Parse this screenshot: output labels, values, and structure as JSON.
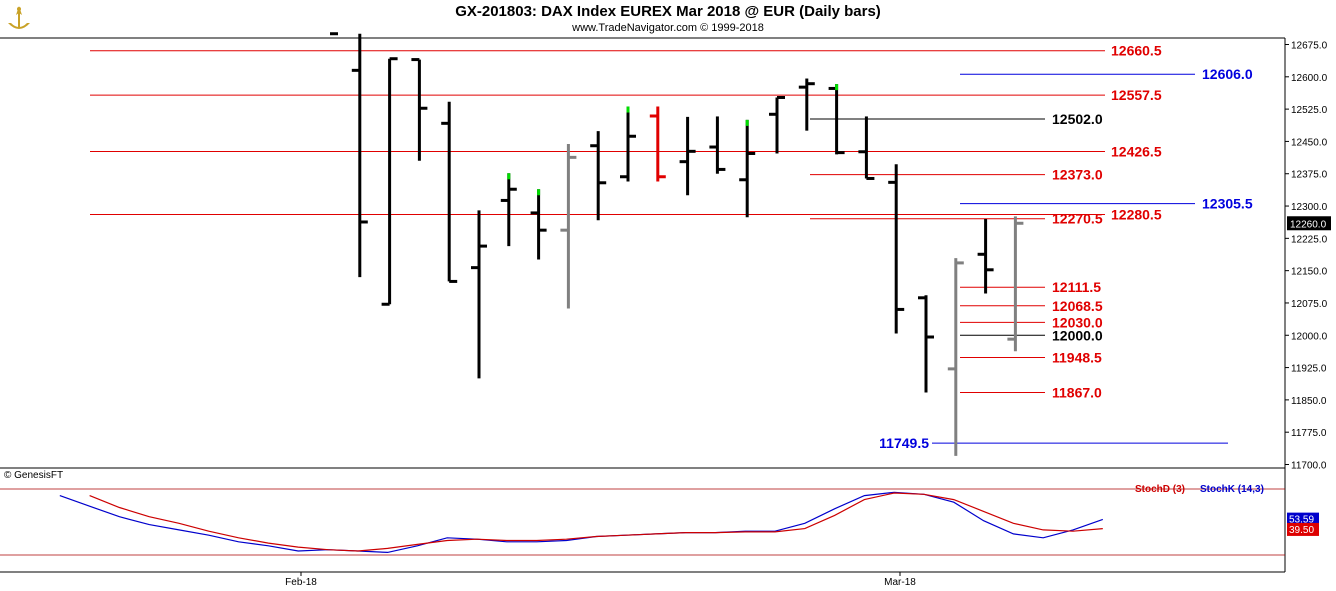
{
  "header": {
    "title": "GX-201803:  DAX Index EUREX Mar 2018 @ EUR  (Daily bars)",
    "subtitle": "www.TradeNavigator.com © 1999-2018"
  },
  "copyright": "© GenesisFT",
  "chart_data": [
    {
      "type": "ohlc",
      "title": "GX-201803:  DAX Index EUREX Mar 2018 @ EUR  (Daily bars)",
      "ylim": [
        11650,
        12700
      ],
      "y_ticks": [
        "12675.0",
        "12600.0",
        "12525.0",
        "12450.0",
        "12375.0",
        "12300.0",
        "12225.0",
        "12150.0",
        "12075.0",
        "12000.0",
        "11925.0",
        "11850.0",
        "11775.0",
        "11700.0"
      ],
      "x_ticks": [
        "Feb-18",
        "Mar-18"
      ],
      "last_price": "12260.0",
      "colors": {
        "black": "#000000",
        "red": "#e00000",
        "green": "#00dd00",
        "gray": "#808080"
      },
      "bars": [
        {
          "o": null,
          "h": 12700,
          "l": 12700,
          "c": 12700,
          "color": "black"
        },
        {
          "o": 12615,
          "h": 12700,
          "l": 12135,
          "c": 12263,
          "color": "black"
        },
        {
          "o": 12072,
          "h": 12642,
          "l": 12072,
          "c": 12642,
          "color": "black"
        },
        {
          "o": 12640,
          "h": 12640,
          "l": 12405,
          "c": 12527,
          "color": "black"
        },
        {
          "o": 12492,
          "h": 12542,
          "l": 12125,
          "c": 12125,
          "color": "black"
        },
        {
          "o": 12157,
          "h": 12290,
          "l": 11900,
          "c": 12207,
          "color": "black"
        },
        {
          "o": 12313,
          "h": 12376,
          "l": 12207,
          "c": 12339,
          "color": "black",
          "tick": "green"
        },
        {
          "o": 12284,
          "h": 12339,
          "l": 12176,
          "c": 12244,
          "color": "black",
          "tick": "green"
        },
        {
          "o": 12244,
          "h": 12444,
          "l": 12062,
          "c": 12413,
          "color": "gray"
        },
        {
          "o": 12440,
          "h": 12474,
          "l": 12267,
          "c": 12354,
          "color": "black"
        },
        {
          "o": 12368,
          "h": 12531,
          "l": 12357,
          "c": 12462,
          "color": "black",
          "tick": "green"
        },
        {
          "o": 12509,
          "h": 12531,
          "l": 12357,
          "c": 12368,
          "color": "red"
        },
        {
          "o": 12403,
          "h": 12507,
          "l": 12325,
          "c": 12427,
          "color": "black"
        },
        {
          "o": 12437,
          "h": 12508,
          "l": 12375,
          "c": 12385,
          "color": "black"
        },
        {
          "o": 12361,
          "h": 12500,
          "l": 12274,
          "c": 12422,
          "color": "black",
          "tick": "green"
        },
        {
          "o": 12513,
          "h": 12552,
          "l": 12422,
          "c": 12552,
          "color": "black"
        },
        {
          "o": 12576,
          "h": 12596,
          "l": 12475,
          "c": 12584,
          "color": "black"
        },
        {
          "o": 12573,
          "h": 12583,
          "l": 12420,
          "c": 12424,
          "color": "black",
          "tick": "green"
        },
        {
          "o": 12426,
          "h": 12508,
          "l": 12364,
          "c": 12364,
          "color": "black"
        },
        {
          "o": 12355,
          "h": 12397,
          "l": 12004,
          "c": 12060,
          "color": "black"
        },
        {
          "o": 12087,
          "h": 12093,
          "l": 11867,
          "c": 11996,
          "color": "black"
        },
        {
          "o": 11922,
          "h": 12179,
          "l": 11720,
          "c": 12168,
          "color": "gray"
        },
        {
          "o": 12188,
          "h": 12270,
          "l": 12097,
          "c": 12152,
          "color": "black"
        },
        {
          "o": 11991,
          "h": 12276,
          "l": 11963,
          "c": 12260,
          "color": "gray"
        }
      ],
      "levels": [
        {
          "value": 12660.5,
          "label": "12660.5",
          "color": "#e00000",
          "span": "long"
        },
        {
          "value": 12606.0,
          "label": "12606.0",
          "color": "#0000dd",
          "span": "right"
        },
        {
          "value": 12557.5,
          "label": "12557.5",
          "color": "#e00000",
          "span": "long"
        },
        {
          "value": 12502.0,
          "label": "12502.0",
          "color": "#000000",
          "span": "mid"
        },
        {
          "value": 12426.5,
          "label": "12426.5",
          "color": "#e00000",
          "span": "long"
        },
        {
          "value": 12373.0,
          "label": "12373.0",
          "color": "#e00000",
          "span": "mid"
        },
        {
          "value": 12305.5,
          "label": "12305.5",
          "color": "#0000dd",
          "span": "right"
        },
        {
          "value": 12280.5,
          "label": "12280.5",
          "color": "#e00000",
          "span": "long"
        },
        {
          "value": 12270.5,
          "label": "12270.5",
          "color": "#e00000",
          "span": "mid"
        },
        {
          "value": 12111.5,
          "label": "12111.5",
          "color": "#e00000",
          "span": "short"
        },
        {
          "value": 12068.5,
          "label": "12068.5",
          "color": "#e00000",
          "span": "short"
        },
        {
          "value": 12030.0,
          "label": "12030.0",
          "color": "#e00000",
          "span": "short"
        },
        {
          "value": 12000.0,
          "label": "12000.0",
          "color": "#000000",
          "span": "short"
        },
        {
          "value": 11948.5,
          "label": "11948.5",
          "color": "#e00000",
          "span": "short"
        },
        {
          "value": 11867.0,
          "label": "11867.0",
          "color": "#e00000",
          "span": "short"
        },
        {
          "value": 11749.5,
          "label": "11749.5",
          "color": "#0000dd",
          "span": "left"
        }
      ]
    },
    {
      "type": "line",
      "ylim": [
        0,
        100
      ],
      "legend": [
        "StochD (3)",
        "StochK (14,3)"
      ],
      "last_values": {
        "k": "53.59",
        "d": "39.50"
      },
      "series": [
        {
          "name": "StochK (14,3)",
          "color": "#0000cc",
          "values": [
            null,
            90,
            74,
            58,
            46,
            38,
            30,
            20,
            14,
            6,
            8,
            6,
            4,
            14,
            26,
            24,
            20,
            20,
            22,
            28,
            30,
            32,
            34,
            34,
            36,
            36,
            48,
            70,
            90,
            95,
            92,
            80,
            52,
            32,
            26,
            38,
            54
          ]
        },
        {
          "name": "StochD (3)",
          "color": "#cc0000",
          "values": [
            null,
            null,
            90,
            72,
            58,
            48,
            36,
            26,
            18,
            12,
            8,
            6,
            10,
            16,
            22,
            24,
            22,
            22,
            24,
            28,
            30,
            32,
            34,
            34,
            35,
            35,
            40,
            60,
            84,
            94,
            92,
            84,
            66,
            48,
            38,
            36,
            40
          ]
        }
      ]
    }
  ]
}
